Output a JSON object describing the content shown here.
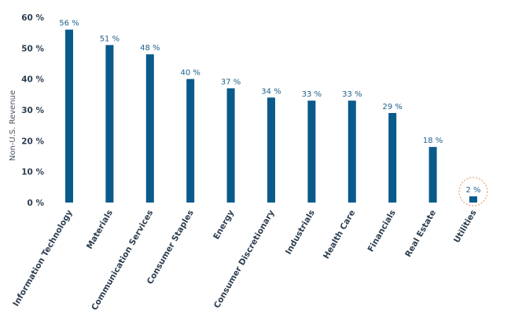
{
  "chart_data": {
    "type": "bar",
    "ylabel": "Non-U.S. Revenue",
    "ylim": [
      0,
      60
    ],
    "yticks": [
      0,
      10,
      20,
      30,
      40,
      50,
      60
    ],
    "ytick_labels": [
      "0 %",
      "10 %",
      "20 %",
      "30 %",
      "40 %",
      "50 %",
      "60 %"
    ],
    "categories": [
      "Information Technology",
      "Materials",
      "Communication Services",
      "Consumer Staples",
      "Energy",
      "Consumer Discretionary",
      "Industrials",
      "Health Care",
      "Financials",
      "Real Estate",
      "Utilities"
    ],
    "values": [
      56,
      51,
      48,
      40,
      37,
      34,
      33,
      33,
      29,
      18,
      2
    ],
    "data_labels": [
      "56 %",
      "51 %",
      "48 %",
      "40 %",
      "37 %",
      "34 %",
      "33 %",
      "33 %",
      "29 %",
      "18 %",
      "2 %"
    ],
    "highlight_category": "Utilities",
    "bar_color": "#0a5a8c",
    "highlight_color": "#e8a36b",
    "grid": false
  }
}
